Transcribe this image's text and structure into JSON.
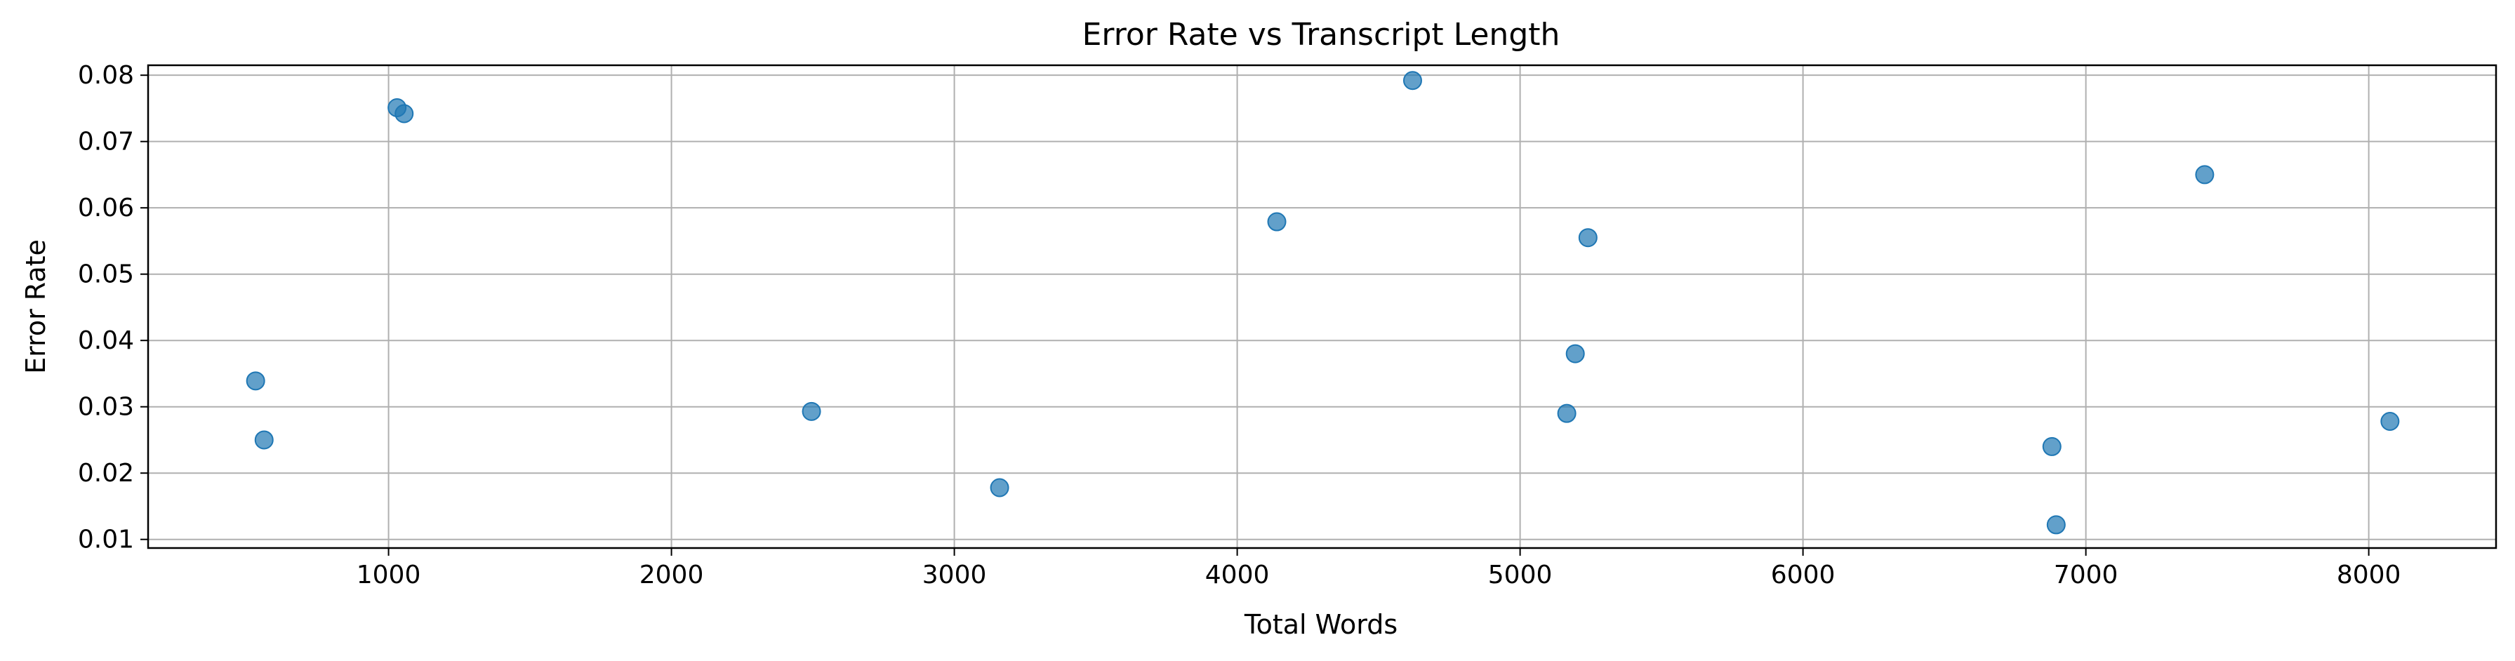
{
  "chart_data": {
    "type": "scatter",
    "title": "Error Rate vs Transcript Length",
    "xlabel": "Total Words",
    "ylabel": "Error Rate",
    "xlim": [
      150,
      8450
    ],
    "ylim": [
      0.0087,
      0.0815
    ],
    "xticks": [
      1000,
      2000,
      3000,
      4000,
      5000,
      6000,
      7000,
      8000
    ],
    "yticks": [
      0.01,
      0.02,
      0.03,
      0.04,
      0.05,
      0.06,
      0.07,
      0.08
    ],
    "xtick_labels": [
      "1000",
      "2000",
      "3000",
      "4000",
      "5000",
      "6000",
      "7000",
      "8000"
    ],
    "ytick_labels": [
      "0.01",
      "0.02",
      "0.03",
      "0.04",
      "0.05",
      "0.06",
      "0.07",
      "0.08"
    ],
    "grid": true,
    "marker_color": "#1f77b4",
    "points": [
      {
        "x": 530,
        "y": 0.0339
      },
      {
        "x": 560,
        "y": 0.025
      },
      {
        "x": 1030,
        "y": 0.0751
      },
      {
        "x": 1055,
        "y": 0.0742
      },
      {
        "x": 2495,
        "y": 0.0293
      },
      {
        "x": 3160,
        "y": 0.0178
      },
      {
        "x": 4140,
        "y": 0.0579
      },
      {
        "x": 4620,
        "y": 0.0792
      },
      {
        "x": 5165,
        "y": 0.029
      },
      {
        "x": 5195,
        "y": 0.038
      },
      {
        "x": 5240,
        "y": 0.0555
      },
      {
        "x": 6880,
        "y": 0.024
      },
      {
        "x": 6895,
        "y": 0.0122
      },
      {
        "x": 7420,
        "y": 0.065
      },
      {
        "x": 8075,
        "y": 0.0278
      }
    ]
  }
}
